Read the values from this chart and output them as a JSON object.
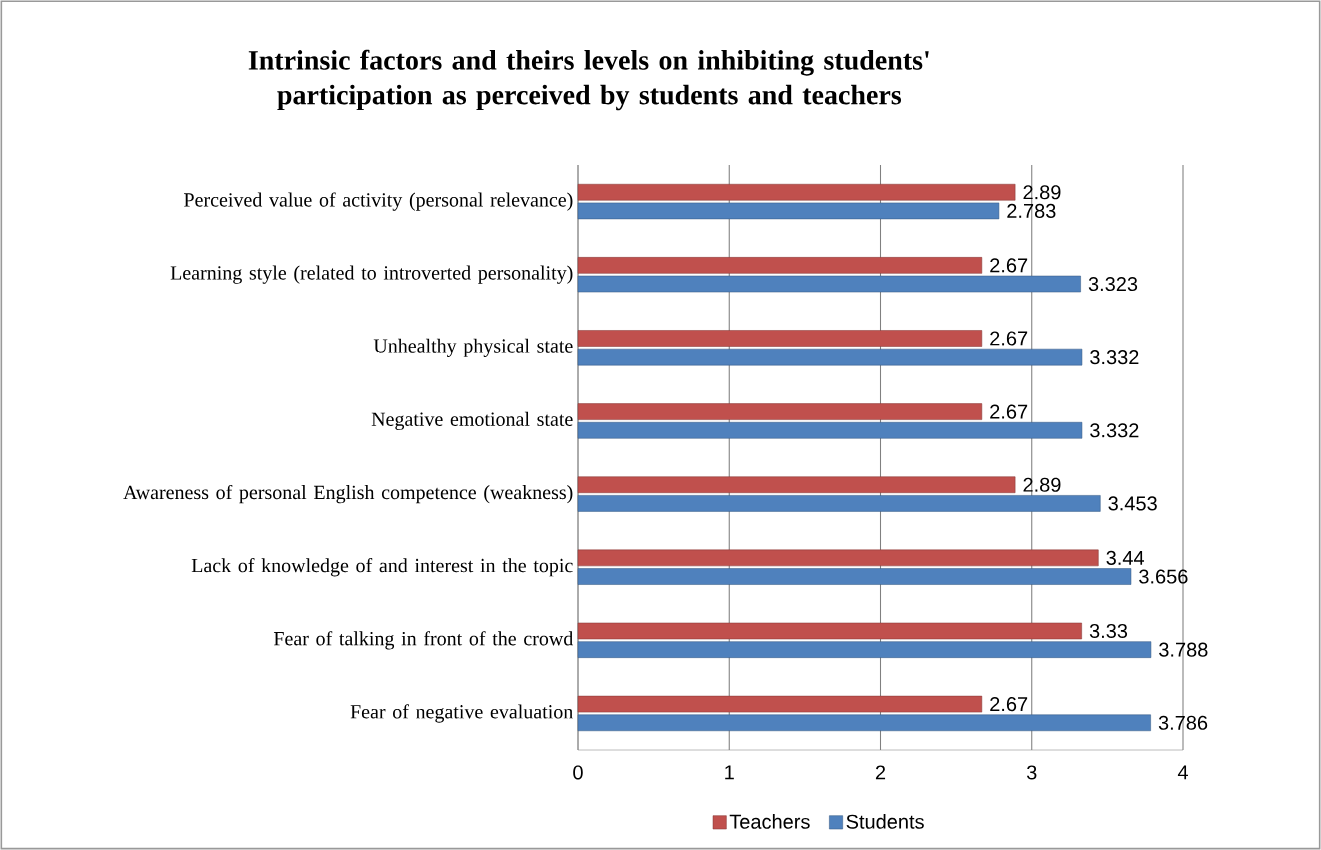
{
  "chart_data": {
    "type": "bar",
    "orientation": "horizontal",
    "title": "Intrinsic factors and theirs levels on inhibiting students' participation as perceived by students and teachers",
    "categories": [
      "Perceived value of activity (personal relevance)",
      "Learning style (related to introverted personality)",
      "Unhealthy physical state",
      "Negative emotional state",
      "Awareness of personal English competence (weakness)",
      "Lack of knowledge of and interest in the topic",
      "Fear of talking in front of the crowd",
      "Fear of negative evaluation"
    ],
    "series": [
      {
        "name": "Teachers",
        "color": "#c0504d",
        "values": [
          2.89,
          2.67,
          2.67,
          2.67,
          2.89,
          3.44,
          3.33,
          2.67
        ]
      },
      {
        "name": "Students",
        "color": "#4f81bd",
        "values": [
          2.783,
          3.323,
          3.332,
          3.332,
          3.453,
          3.656,
          3.788,
          3.786
        ]
      }
    ],
    "xlim": [
      0,
      4
    ],
    "xticks": [
      0,
      1,
      2,
      3,
      4
    ],
    "grid": "x",
    "legend": "bottom",
    "data_labels": true
  }
}
